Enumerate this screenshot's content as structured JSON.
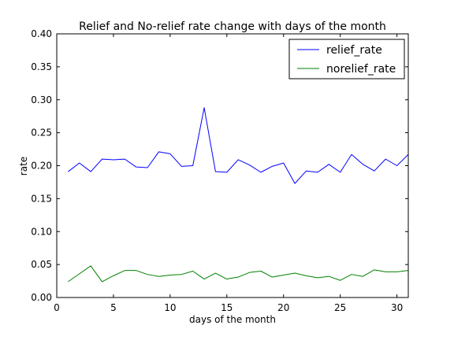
{
  "chart_data": {
    "type": "line",
    "title": "Relief and No-relief rate change with days of the month",
    "xlabel": "days of the month",
    "ylabel": "rate",
    "xlim": [
      0,
      31
    ],
    "ylim": [
      0,
      0.4
    ],
    "xticks": [
      0,
      5,
      10,
      15,
      20,
      25,
      30
    ],
    "yticks": [
      0.0,
      0.05,
      0.1,
      0.15,
      0.2,
      0.25,
      0.3,
      0.35,
      0.4
    ],
    "yticklabels": [
      "0.00",
      "0.05",
      "0.10",
      "0.15",
      "0.20",
      "0.25",
      "0.30",
      "0.35",
      "0.40"
    ],
    "grid": false,
    "legend_position": "top-right",
    "x": [
      1,
      2,
      3,
      4,
      5,
      6,
      7,
      8,
      9,
      10,
      11,
      12,
      13,
      14,
      15,
      16,
      17,
      18,
      19,
      20,
      21,
      22,
      23,
      24,
      25,
      26,
      27,
      28,
      29,
      30,
      31
    ],
    "series": [
      {
        "name": "relief_rate",
        "color": "#0000ff",
        "values": [
          0.191,
          0.204,
          0.191,
          0.21,
          0.209,
          0.21,
          0.198,
          0.197,
          0.221,
          0.218,
          0.199,
          0.2,
          0.288,
          0.191,
          0.19,
          0.209,
          0.201,
          0.19,
          0.199,
          0.204,
          0.173,
          0.192,
          0.19,
          0.202,
          0.19,
          0.217,
          0.202,
          0.192,
          0.21,
          0.2,
          0.217
        ]
      },
      {
        "name": "norelief_rate",
        "color": "#008000",
        "values": [
          0.024,
          0.036,
          0.048,
          0.024,
          0.033,
          0.041,
          0.041,
          0.035,
          0.032,
          0.034,
          0.035,
          0.04,
          0.028,
          0.037,
          0.028,
          0.031,
          0.038,
          0.04,
          0.031,
          0.034,
          0.037,
          0.033,
          0.03,
          0.032,
          0.026,
          0.035,
          0.032,
          0.042,
          0.039,
          0.039,
          0.041
        ]
      }
    ]
  }
}
